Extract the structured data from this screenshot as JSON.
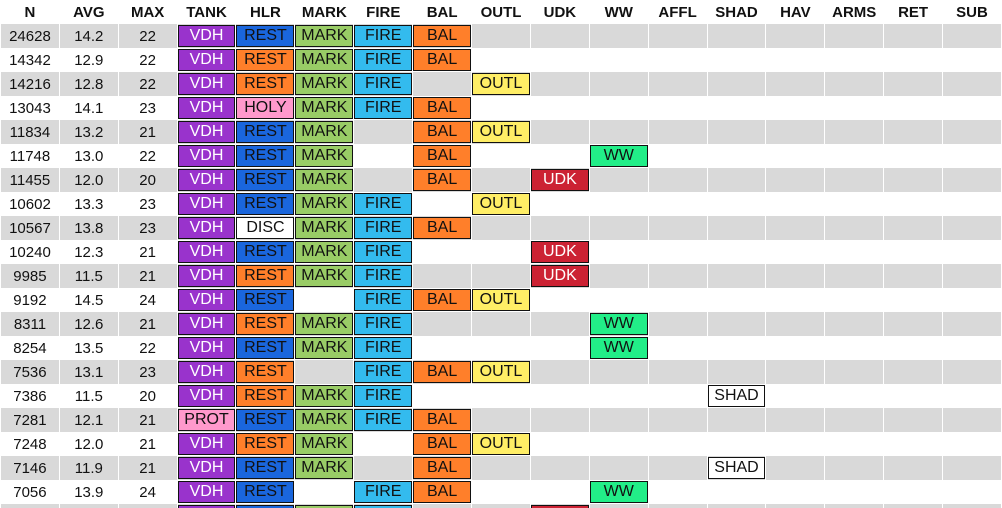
{
  "columns": [
    "N",
    "AVG",
    "MAX",
    "TANK",
    "HLR",
    "MARK",
    "FIRE",
    "BAL",
    "OUTL",
    "UDK",
    "WW",
    "AFFL",
    "SHAD",
    "HAV",
    "ARMS",
    "RET",
    "SUB"
  ],
  "tag_colors": {
    "VDH": "#9933cc",
    "PROT": "#ff99cc",
    "REST": "#ff7f2a",
    "HOLY": "#ff99cc",
    "DISC": "#ffffff",
    "MARK": "#99cc66",
    "FIRE": "#33bbee",
    "BAL": "#ff7f2a",
    "OUTL": "#ffee66",
    "UDK": "#cc2233",
    "WW": "#22ee88",
    "SHAD": "#ffffff"
  },
  "tag_variants": {
    "REST_blue": "#1a66dd"
  },
  "rows": [
    {
      "n": "24628",
      "avg": "14.2",
      "max": "22",
      "tank": "VDH",
      "hlr": "REST",
      "hlr_color": "blue",
      "mark": "MARK",
      "fire": "FIRE",
      "bal": "BAL",
      "outl": "",
      "udk": "",
      "ww": "",
      "affl": "",
      "shad": "",
      "hav": "",
      "arms": "",
      "ret": "",
      "sub": ""
    },
    {
      "n": "14342",
      "avg": "12.9",
      "max": "22",
      "tank": "VDH",
      "hlr": "REST",
      "hlr_color": "orange",
      "mark": "MARK",
      "fire": "FIRE",
      "bal": "BAL",
      "outl": "",
      "udk": "",
      "ww": "",
      "affl": "",
      "shad": "",
      "hav": "",
      "arms": "",
      "ret": "",
      "sub": ""
    },
    {
      "n": "14216",
      "avg": "12.8",
      "max": "22",
      "tank": "VDH",
      "hlr": "REST",
      "hlr_color": "orange",
      "mark": "MARK",
      "fire": "FIRE",
      "bal": "",
      "outl": "OUTL",
      "udk": "",
      "ww": "",
      "affl": "",
      "shad": "",
      "hav": "",
      "arms": "",
      "ret": "",
      "sub": ""
    },
    {
      "n": "13043",
      "avg": "14.1",
      "max": "23",
      "tank": "VDH",
      "hlr": "HOLY",
      "hlr_color": "pink",
      "mark": "MARK",
      "fire": "FIRE",
      "bal": "BAL",
      "outl": "",
      "udk": "",
      "ww": "",
      "affl": "",
      "shad": "",
      "hav": "",
      "arms": "",
      "ret": "",
      "sub": ""
    },
    {
      "n": "11834",
      "avg": "13.2",
      "max": "21",
      "tank": "VDH",
      "hlr": "REST",
      "hlr_color": "blue",
      "mark": "MARK",
      "fire": "",
      "bal": "BAL",
      "outl": "OUTL",
      "udk": "",
      "ww": "",
      "affl": "",
      "shad": "",
      "hav": "",
      "arms": "",
      "ret": "",
      "sub": ""
    },
    {
      "n": "11748",
      "avg": "13.0",
      "max": "22",
      "tank": "VDH",
      "hlr": "REST",
      "hlr_color": "blue",
      "mark": "MARK",
      "fire": "",
      "bal": "BAL",
      "outl": "",
      "udk": "",
      "ww": "WW",
      "affl": "",
      "shad": "",
      "hav": "",
      "arms": "",
      "ret": "",
      "sub": ""
    },
    {
      "n": "11455",
      "avg": "12.0",
      "max": "20",
      "tank": "VDH",
      "hlr": "REST",
      "hlr_color": "blue",
      "mark": "MARK",
      "fire": "",
      "bal": "BAL",
      "outl": "",
      "udk": "UDK",
      "ww": "",
      "affl": "",
      "shad": "",
      "hav": "",
      "arms": "",
      "ret": "",
      "sub": ""
    },
    {
      "n": "10602",
      "avg": "13.3",
      "max": "23",
      "tank": "VDH",
      "hlr": "REST",
      "hlr_color": "blue",
      "mark": "MARK",
      "fire": "FIRE",
      "bal": "",
      "outl": "OUTL",
      "udk": "",
      "ww": "",
      "affl": "",
      "shad": "",
      "hav": "",
      "arms": "",
      "ret": "",
      "sub": ""
    },
    {
      "n": "10567",
      "avg": "13.8",
      "max": "23",
      "tank": "VDH",
      "hlr": "DISC",
      "hlr_color": "white",
      "mark": "MARK",
      "fire": "FIRE",
      "bal": "BAL",
      "outl": "",
      "udk": "",
      "ww": "",
      "affl": "",
      "shad": "",
      "hav": "",
      "arms": "",
      "ret": "",
      "sub": ""
    },
    {
      "n": "10240",
      "avg": "12.3",
      "max": "21",
      "tank": "VDH",
      "hlr": "REST",
      "hlr_color": "blue",
      "mark": "MARK",
      "fire": "FIRE",
      "bal": "",
      "outl": "",
      "udk": "UDK",
      "ww": "",
      "affl": "",
      "shad": "",
      "hav": "",
      "arms": "",
      "ret": "",
      "sub": ""
    },
    {
      "n": "9985",
      "avg": "11.5",
      "max": "21",
      "tank": "VDH",
      "hlr": "REST",
      "hlr_color": "orange",
      "mark": "MARK",
      "fire": "FIRE",
      "bal": "",
      "outl": "",
      "udk": "UDK",
      "ww": "",
      "affl": "",
      "shad": "",
      "hav": "",
      "arms": "",
      "ret": "",
      "sub": ""
    },
    {
      "n": "9192",
      "avg": "14.5",
      "max": "24",
      "tank": "VDH",
      "hlr": "REST",
      "hlr_color": "blue",
      "mark": "",
      "fire": "FIRE",
      "bal": "BAL",
      "outl": "OUTL",
      "udk": "",
      "ww": "",
      "affl": "",
      "shad": "",
      "hav": "",
      "arms": "",
      "ret": "",
      "sub": ""
    },
    {
      "n": "8311",
      "avg": "12.6",
      "max": "21",
      "tank": "VDH",
      "hlr": "REST",
      "hlr_color": "orange",
      "mark": "MARK",
      "fire": "FIRE",
      "bal": "",
      "outl": "",
      "udk": "",
      "ww": "WW",
      "affl": "",
      "shad": "",
      "hav": "",
      "arms": "",
      "ret": "",
      "sub": ""
    },
    {
      "n": "8254",
      "avg": "13.5",
      "max": "22",
      "tank": "VDH",
      "hlr": "REST",
      "hlr_color": "blue",
      "mark": "MARK",
      "fire": "FIRE",
      "bal": "",
      "outl": "",
      "udk": "",
      "ww": "WW",
      "affl": "",
      "shad": "",
      "hav": "",
      "arms": "",
      "ret": "",
      "sub": ""
    },
    {
      "n": "7536",
      "avg": "13.1",
      "max": "23",
      "tank": "VDH",
      "hlr": "REST",
      "hlr_color": "orange",
      "mark": "",
      "fire": "FIRE",
      "bal": "BAL",
      "outl": "OUTL",
      "udk": "",
      "ww": "",
      "affl": "",
      "shad": "",
      "hav": "",
      "arms": "",
      "ret": "",
      "sub": ""
    },
    {
      "n": "7386",
      "avg": "11.5",
      "max": "20",
      "tank": "VDH",
      "hlr": "REST",
      "hlr_color": "orange",
      "mark": "MARK",
      "fire": "FIRE",
      "bal": "",
      "outl": "",
      "udk": "",
      "ww": "",
      "affl": "",
      "shad": "SHAD",
      "hav": "",
      "arms": "",
      "ret": "",
      "sub": ""
    },
    {
      "n": "7281",
      "avg": "12.1",
      "max": "21",
      "tank": "PROT",
      "hlr": "REST",
      "hlr_color": "blue",
      "mark": "MARK",
      "fire": "FIRE",
      "bal": "BAL",
      "outl": "",
      "udk": "",
      "ww": "",
      "affl": "",
      "shad": "",
      "hav": "",
      "arms": "",
      "ret": "",
      "sub": ""
    },
    {
      "n": "7248",
      "avg": "12.0",
      "max": "21",
      "tank": "VDH",
      "hlr": "REST",
      "hlr_color": "orange",
      "mark": "MARK",
      "fire": "",
      "bal": "BAL",
      "outl": "OUTL",
      "udk": "",
      "ww": "",
      "affl": "",
      "shad": "",
      "hav": "",
      "arms": "",
      "ret": "",
      "sub": ""
    },
    {
      "n": "7146",
      "avg": "11.9",
      "max": "21",
      "tank": "VDH",
      "hlr": "REST",
      "hlr_color": "blue",
      "mark": "MARK",
      "fire": "",
      "bal": "BAL",
      "outl": "",
      "udk": "",
      "ww": "",
      "affl": "",
      "shad": "SHAD",
      "hav": "",
      "arms": "",
      "ret": "",
      "sub": ""
    },
    {
      "n": "7056",
      "avg": "13.9",
      "max": "24",
      "tank": "VDH",
      "hlr": "REST",
      "hlr_color": "blue",
      "mark": "",
      "fire": "FIRE",
      "bal": "BAL",
      "outl": "",
      "udk": "",
      "ww": "WW",
      "affl": "",
      "shad": "",
      "hav": "",
      "arms": "",
      "ret": "",
      "sub": ""
    },
    {
      "n": "",
      "avg": "",
      "max": "",
      "tank": "VDH",
      "hlr": "REST",
      "hlr_color": "blue",
      "mark": "MARK",
      "fire": "FIRE",
      "bal": "",
      "outl": "",
      "udk": "UDK",
      "ww": "",
      "affl": "",
      "shad": "",
      "hav": "",
      "arms": "",
      "ret": "",
      "sub": ""
    }
  ]
}
